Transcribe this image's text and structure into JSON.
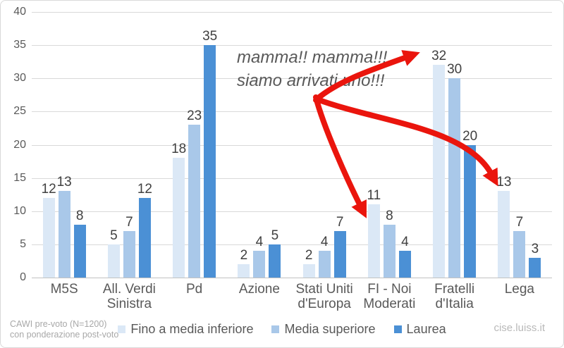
{
  "chart_data": {
    "type": "bar",
    "categories": [
      "M5S",
      "All. Verdi Sinistra",
      "Pd",
      "Azione",
      "Stati Uniti d'Europa",
      "FI - Noi Moderati",
      "Fratelli d'Italia",
      "Lega"
    ],
    "x_labels": [
      "M5S",
      "All. Verdi\nSinistra",
      "Pd",
      "Azione",
      "Stati Uniti\nd'Europa",
      "FI - Noi\nModerati",
      "Fratelli\nd'Italia",
      "Lega"
    ],
    "series": [
      {
        "name": "Fino a media inferiore",
        "values": [
          12,
          5,
          18,
          2,
          2,
          11,
          32,
          13
        ]
      },
      {
        "name": "Media superiore",
        "values": [
          13,
          7,
          23,
          4,
          4,
          8,
          30,
          7
        ]
      },
      {
        "name": "Laurea",
        "values": [
          8,
          12,
          35,
          5,
          7,
          4,
          20,
          3
        ]
      }
    ],
    "ylim": [
      0,
      40
    ],
    "ytick_step": 5,
    "grid": true,
    "legend_position": "bottom"
  },
  "legend": {
    "items": [
      {
        "label": "Fino a media inferiore",
        "color": "#dbe8f6"
      },
      {
        "label": "Media superiore",
        "color": "#a9c8e9"
      },
      {
        "label": "Laurea",
        "color": "#4b90d5"
      }
    ]
  },
  "annotation": {
    "text": "mamma!! mamma!!!\nsiamo arrivati uno!!!",
    "text_color": "#595959",
    "arrow_color": "#ea150d"
  },
  "footer": {
    "source_line1": "CAWI pre-voto (N=1200)",
    "source_line2": "con ponderazione post-voto",
    "site": "cise.luiss.it"
  }
}
